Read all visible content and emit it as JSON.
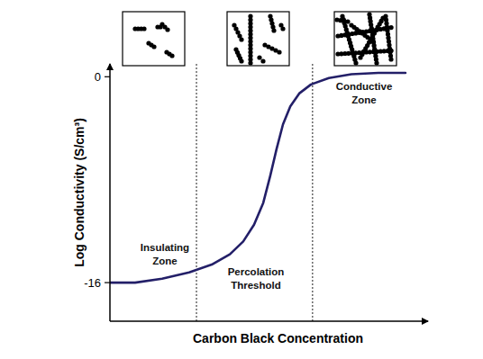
{
  "chart_data": {
    "type": "line",
    "x_label": "Carbon Black Concentration",
    "y_label": "Log Conductivity (S/cm³)",
    "x": [
      0,
      0.79,
      1.64,
      2.49,
      3.2,
      3.77,
      4.19,
      4.53,
      4.82,
      5.04,
      5.24,
      5.44,
      5.67,
      5.95,
      6.32,
      6.88,
      7.59,
      8.44,
      9.29
    ],
    "values": [
      -16,
      -16,
      -15.7,
      -15.2,
      -14.6,
      -13.8,
      -12.8,
      -11.5,
      -9.8,
      -7.7,
      -5.6,
      -3.7,
      -2.3,
      -1.3,
      -0.6,
      -0.1,
      0.2,
      0.3,
      0.3
    ],
    "color": "#231f68",
    "xlim": [
      0,
      10
    ],
    "ylim": [
      -19,
      1
    ],
    "yticks": [
      -16,
      0
    ],
    "tick_labels": "y",
    "zone_boundaries": [
      2.72,
      6.37
    ],
    "annotations": [
      "Insulating Zone",
      "Percolation Threshold",
      "Conductive Zone"
    ]
  }
}
